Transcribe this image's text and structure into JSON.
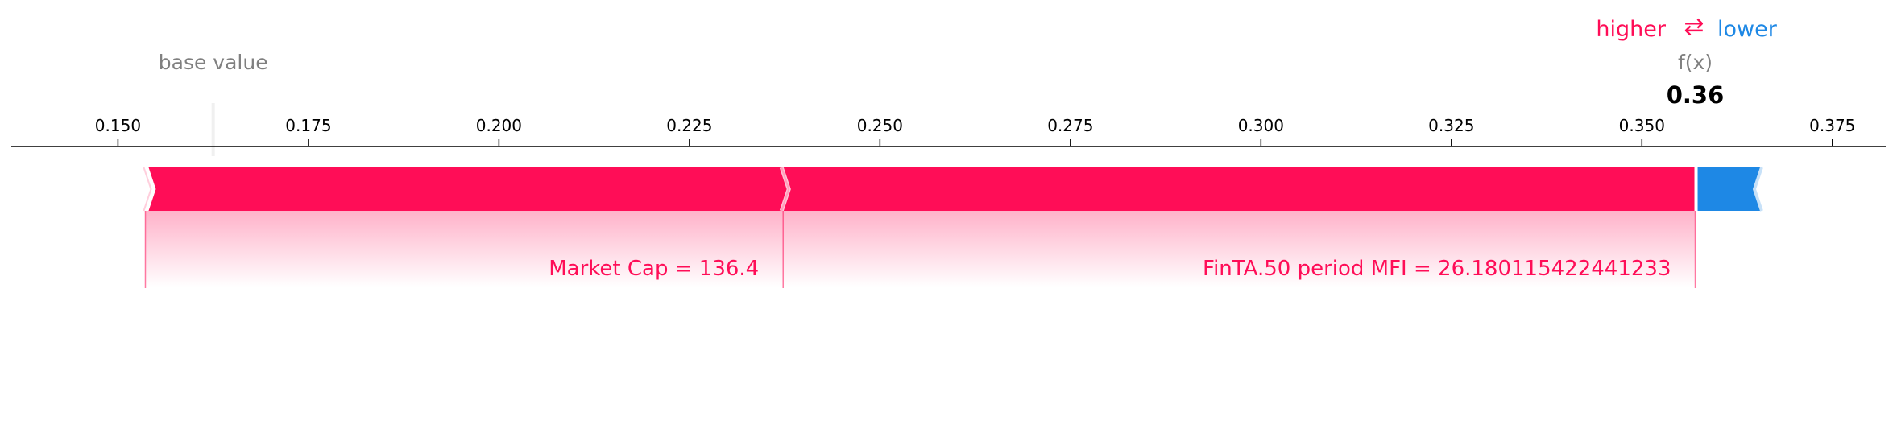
{
  "chart_data": {
    "type": "force",
    "legend": {
      "higher": "higher",
      "arrow": "⇄",
      "lower": "lower"
    },
    "base_value_label": "base value",
    "fx_label": "f(x)",
    "output_value": 0.357,
    "output_value_label": "0.36",
    "base_value": 0.1625,
    "x_ticks": [
      0.15,
      0.175,
      0.2,
      0.225,
      0.25,
      0.275,
      0.3,
      0.325,
      0.35,
      0.375
    ],
    "x_tick_labels": [
      "0.150",
      "0.175",
      "0.200",
      "0.225",
      "0.250",
      "0.275",
      "0.300",
      "0.325",
      "0.350",
      "0.375"
    ],
    "xlim": [
      0.136,
      0.382
    ],
    "positive_features": [
      {
        "label": "Market Cap = 136.4",
        "start": 0.1536,
        "end": 0.2373
      },
      {
        "label": "FinTA.50 period MFI = 26.180115422441233",
        "start": 0.2373,
        "end": 0.357
      }
    ],
    "negative_features": [
      {
        "label": "",
        "start": 0.357,
        "end": 0.3655
      }
    ],
    "colors": {
      "positive": "#ff0d57",
      "negative": "#1e88e5",
      "axis": "#000000",
      "muted": "#808080"
    }
  }
}
